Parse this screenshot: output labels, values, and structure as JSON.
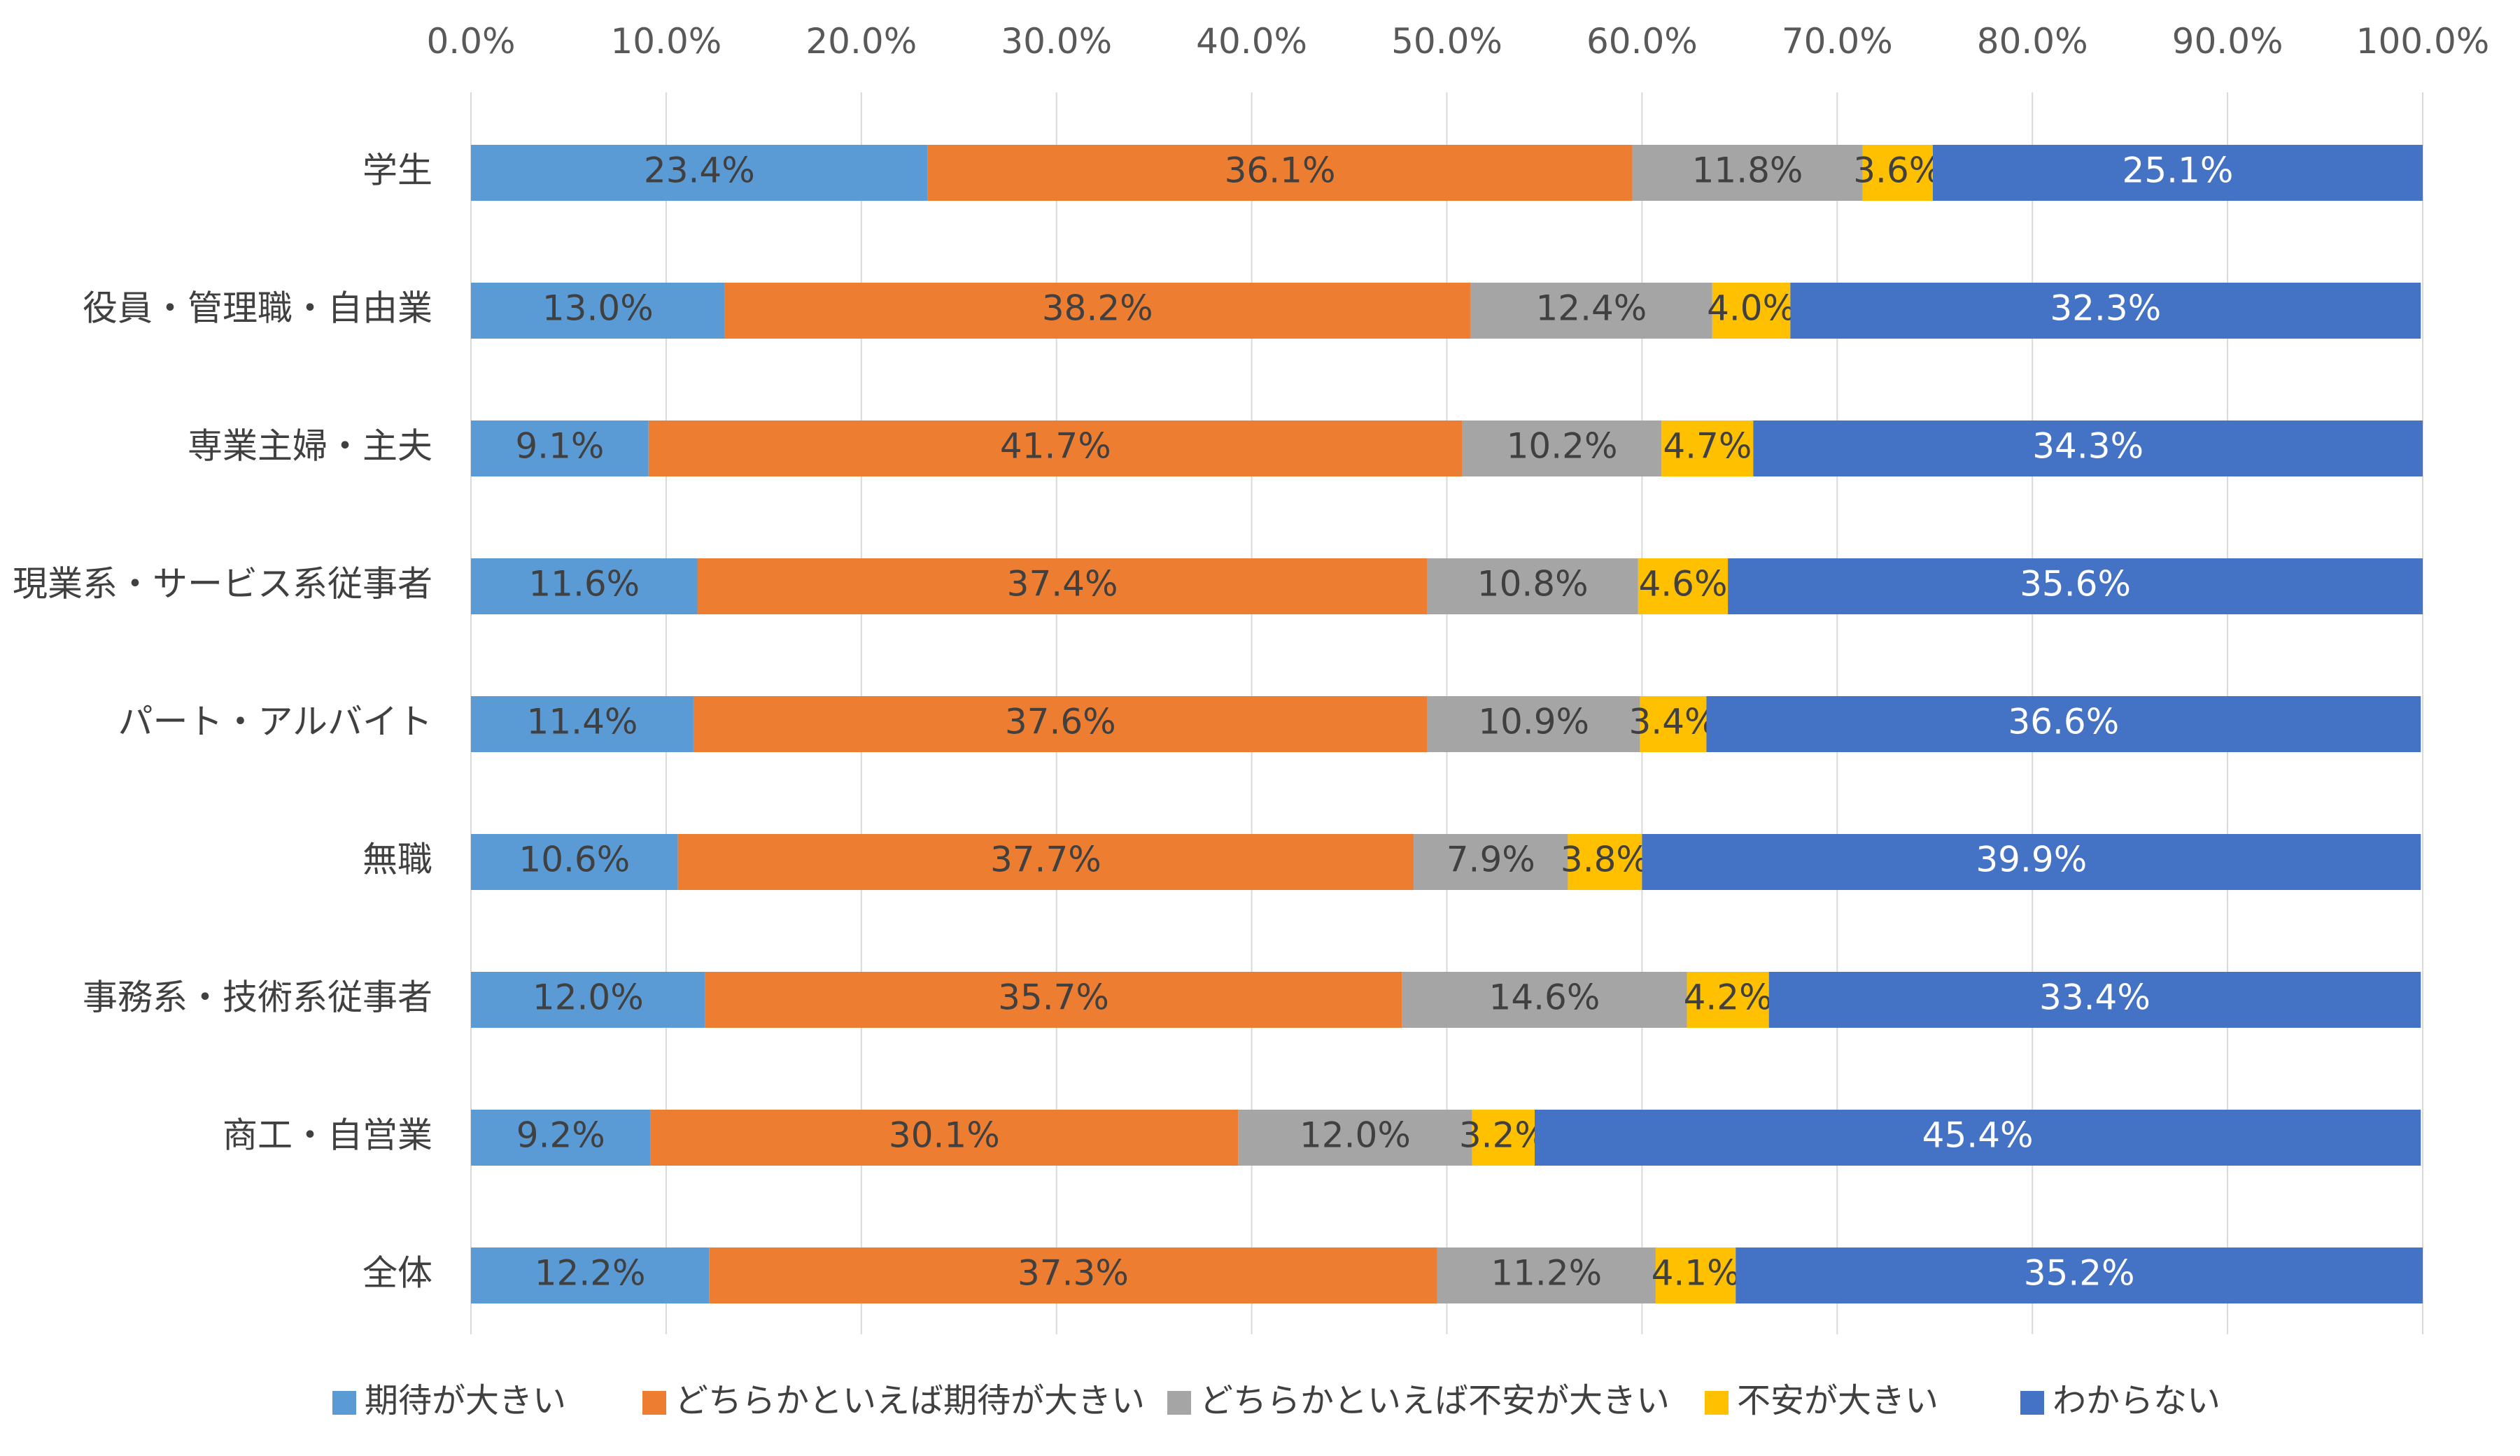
{
  "chart_data": {
    "type": "bar",
    "orientation": "horizontal",
    "stacked": true,
    "title": "",
    "xlabel": "",
    "ylabel": "",
    "xlim": [
      0,
      100
    ],
    "x_ticks": [
      "0.0%",
      "10.0%",
      "20.0%",
      "30.0%",
      "40.0%",
      "50.0%",
      "60.0%",
      "70.0%",
      "80.0%",
      "90.0%",
      "100.0%"
    ],
    "x_axis_position": "top",
    "grid": true,
    "legend_position": "bottom",
    "categories": [
      "学生",
      "役員・管理職・自由業",
      "専業主婦・主夫",
      "現業系・サービス系従事者",
      "パート・アルバイト",
      "無職",
      "事務系・技術系従事者",
      "商工・自営業",
      "全体"
    ],
    "series": [
      {
        "name": "期待が大きい",
        "color": "#5B9BD5",
        "label_color": "#404040",
        "values": [
          23.4,
          13.0,
          9.1,
          11.6,
          11.4,
          10.6,
          12.0,
          9.2,
          12.2
        ],
        "labels": [
          "23.4%",
          "13.0%",
          "9.1%",
          "11.6%",
          "11.4%",
          "10.6%",
          "12.0%",
          "9.2%",
          "12.2%"
        ]
      },
      {
        "name": "どちらかといえば期待が大きい",
        "color": "#ED7D31",
        "label_color": "#404040",
        "values": [
          36.1,
          38.2,
          41.7,
          37.4,
          37.6,
          37.7,
          35.7,
          30.1,
          37.3
        ],
        "labels": [
          "36.1%",
          "38.2%",
          "41.7%",
          "37.4%",
          "37.6%",
          "37.7%",
          "35.7%",
          "30.1%",
          "37.3%"
        ]
      },
      {
        "name": "どちらかといえば不安が大きい",
        "color": "#A5A5A5",
        "label_color": "#404040",
        "values": [
          11.8,
          12.4,
          10.2,
          10.8,
          10.9,
          7.9,
          14.6,
          12.0,
          11.2
        ],
        "labels": [
          "11.8%",
          "12.4%",
          "10.2%",
          "10.8%",
          "10.9%",
          "7.9%",
          "14.6%",
          "12.0%",
          "11.2%"
        ]
      },
      {
        "name": "不安が大きい",
        "color": "#FFC000",
        "label_color": "#404040",
        "values": [
          3.6,
          4.0,
          4.7,
          4.6,
          3.4,
          3.8,
          4.2,
          3.2,
          4.1
        ],
        "labels": [
          "3.6%",
          "4.0%",
          "4.7%",
          "4.6%",
          "3.4%",
          "3.8%",
          "4.2%",
          "3.2%",
          "4.1%"
        ]
      },
      {
        "name": "わからない",
        "color": "#4472C4",
        "label_color": "#ffffff",
        "values": [
          25.1,
          32.3,
          34.3,
          35.6,
          36.6,
          39.9,
          33.4,
          45.4,
          35.2
        ],
        "labels": [
          "25.1%",
          "32.3%",
          "34.3%",
          "35.6%",
          "36.6%",
          "39.9%",
          "33.4%",
          "45.4%",
          "35.2%"
        ]
      }
    ]
  }
}
